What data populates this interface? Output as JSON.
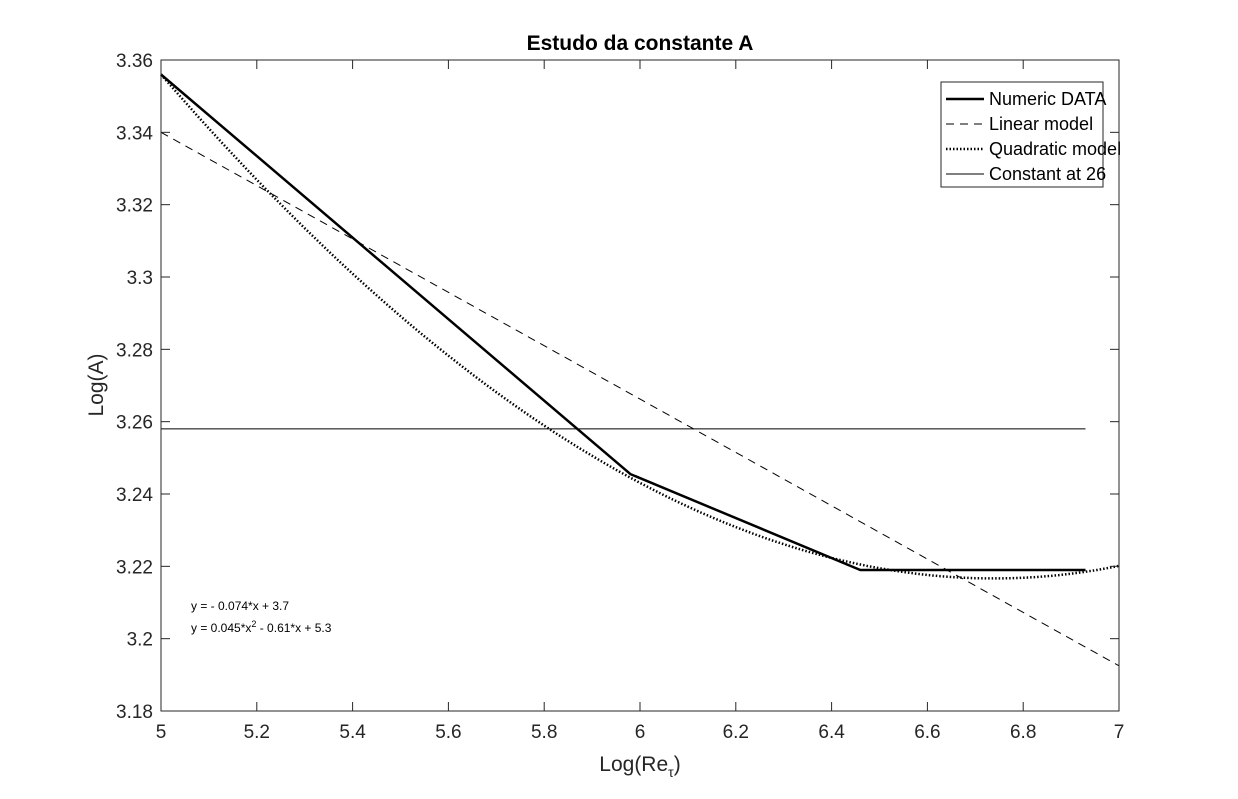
{
  "chart_data": {
    "type": "line",
    "title": "Estudo da constante A",
    "xlabel_main": "Log(Re",
    "xlabel_sub": "τ",
    "xlabel_close": ")",
    "ylabel": "Log(A)",
    "xlim": [
      5,
      7
    ],
    "ylim": [
      3.18,
      3.36
    ],
    "xticks": [
      5,
      5.2,
      5.4,
      5.6,
      5.8,
      6,
      6.2,
      6.4,
      6.6,
      6.8,
      7
    ],
    "xtick_labels": [
      "5",
      "5.2",
      "5.4",
      "5.6",
      "5.8",
      "6",
      "6.2",
      "6.4",
      "6.6",
      "6.8",
      "7"
    ],
    "yticks": [
      3.18,
      3.2,
      3.22,
      3.24,
      3.26,
      3.28,
      3.3,
      3.32,
      3.34,
      3.36
    ],
    "ytick_labels": [
      "3.18",
      "3.2",
      "3.22",
      "3.24",
      "3.26",
      "3.28",
      "3.3",
      "3.32",
      "3.34",
      "3.36"
    ],
    "grid": false,
    "legend_position": "top-right",
    "series": [
      {
        "name": "Numeric DATA",
        "style": "solid-thick",
        "color": "#000000",
        "x": [
          5.0,
          5.98,
          6.46,
          6.93
        ],
        "y": [
          3.356,
          3.2455,
          3.219,
          3.219
        ]
      },
      {
        "name": "Linear model",
        "style": "dashed",
        "color": "#000000",
        "x": [
          5.0,
          7.0
        ],
        "y": [
          3.34,
          3.1925
        ]
      },
      {
        "name": "Quadratic model",
        "style": "dotted",
        "color": "#000000",
        "x": [
          5.0,
          5.98,
          6.46,
          6.93
        ],
        "y": [
          3.356,
          3.2445,
          3.2205,
          3.2185
        ],
        "extend_to": 7.0
      },
      {
        "name": "Constant at 26",
        "style": "solid-thin",
        "color": "#000000",
        "x": [
          5.0,
          6.93
        ],
        "y": [
          3.258,
          3.258
        ]
      }
    ],
    "annotations": {
      "linear_eq": "y = - 0.074*x + 3.7",
      "quad_eq_a": "y = 0.045*x",
      "quad_eq_sup": "2",
      "quad_eq_b": " - 0.61*x + 5.3"
    }
  }
}
